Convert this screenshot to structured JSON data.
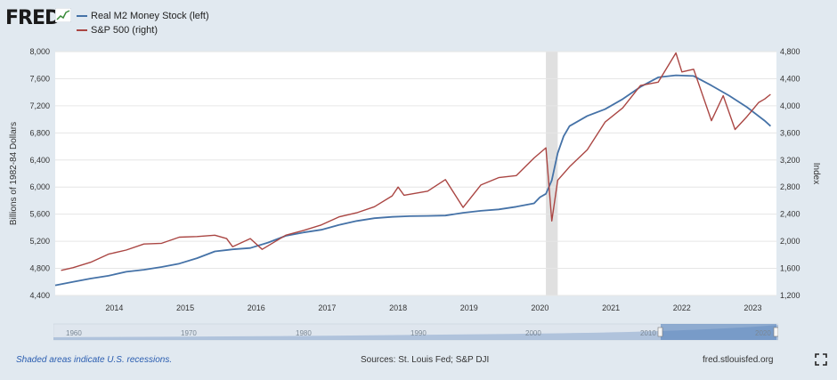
{
  "header": {
    "logo_text": "FRED"
  },
  "legend": [
    {
      "label": "Real M2 Money Stock (left)",
      "color": "#4572a7"
    },
    {
      "label": "S&P 500 (right)",
      "color": "#aa4643"
    }
  ],
  "chart_data": {
    "type": "line",
    "ylabel": "Billions of 1982-84 Dollars",
    "y2label": "Index",
    "ylim": [
      4400,
      8000
    ],
    "y2lim": [
      1200,
      4800
    ],
    "yticks": [
      "4,400",
      "4,800",
      "5,200",
      "5,600",
      "6,000",
      "6,400",
      "6,800",
      "7,200",
      "7,600",
      "8,000"
    ],
    "y2ticks": [
      "1,200",
      "1,600",
      "2,000",
      "2,400",
      "2,800",
      "3,200",
      "3,600",
      "4,000",
      "4,400",
      "4,800"
    ],
    "xlim": [
      "2013-03-01",
      "2023-05-01"
    ],
    "xticks": [
      "2014",
      "2015",
      "2016",
      "2017",
      "2018",
      "2019",
      "2020",
      "2021",
      "2022",
      "2023"
    ],
    "recession": {
      "start": "2020-02-01",
      "end": "2020-04-01"
    },
    "series": [
      {
        "name": "Real M2 Money Stock (left)",
        "axis": "left",
        "color": "#4572a7",
        "x": [
          "2013-03",
          "2013-06",
          "2013-09",
          "2013-12",
          "2014-03",
          "2014-06",
          "2014-09",
          "2014-12",
          "2015-03",
          "2015-06",
          "2015-09",
          "2015-12",
          "2016-03",
          "2016-06",
          "2016-09",
          "2016-12",
          "2017-03",
          "2017-06",
          "2017-09",
          "2017-12",
          "2018-03",
          "2018-06",
          "2018-09",
          "2018-12",
          "2019-03",
          "2019-06",
          "2019-09",
          "2019-12",
          "2020-01",
          "2020-02",
          "2020-03",
          "2020-04",
          "2020-05",
          "2020-06",
          "2020-09",
          "2020-12",
          "2021-03",
          "2021-06",
          "2021-09",
          "2021-12",
          "2022-03",
          "2022-06",
          "2022-09",
          "2022-12",
          "2023-03",
          "2023-04"
        ],
        "y": [
          4550,
          4600,
          4650,
          4690,
          4750,
          4780,
          4820,
          4870,
          4950,
          5050,
          5080,
          5100,
          5180,
          5280,
          5330,
          5370,
          5440,
          5500,
          5540,
          5560,
          5570,
          5575,
          5580,
          5620,
          5650,
          5670,
          5710,
          5760,
          5850,
          5900,
          6100,
          6500,
          6750,
          6900,
          7050,
          7150,
          7300,
          7480,
          7620,
          7650,
          7640,
          7500,
          7350,
          7180,
          6980,
          6900
        ]
      },
      {
        "name": "S&P 500 (right)",
        "axis": "right",
        "color": "#aa4643",
        "x": [
          "2013-04",
          "2013-06",
          "2013-09",
          "2013-12",
          "2014-03",
          "2014-06",
          "2014-09",
          "2014-12",
          "2015-03",
          "2015-06",
          "2015-08",
          "2015-09",
          "2015-12",
          "2016-02",
          "2016-06",
          "2016-09",
          "2016-12",
          "2017-03",
          "2017-06",
          "2017-09",
          "2017-12",
          "2018-01",
          "2018-02",
          "2018-06",
          "2018-09",
          "2018-12",
          "2019-03",
          "2019-06",
          "2019-09",
          "2019-12",
          "2020-02",
          "2020-03",
          "2020-04",
          "2020-06",
          "2020-09",
          "2020-12",
          "2021-03",
          "2021-06",
          "2021-09",
          "2021-12",
          "2022-01",
          "2022-03",
          "2022-06",
          "2022-08",
          "2022-10",
          "2022-12",
          "2023-02",
          "2023-03",
          "2023-04"
        ],
        "y": [
          1570,
          1610,
          1690,
          1810,
          1870,
          1960,
          1970,
          2060,
          2070,
          2090,
          2040,
          1920,
          2040,
          1880,
          2090,
          2160,
          2240,
          2360,
          2420,
          2510,
          2670,
          2800,
          2680,
          2740,
          2910,
          2500,
          2830,
          2940,
          2970,
          3230,
          3380,
          2300,
          2900,
          3100,
          3350,
          3760,
          3970,
          4300,
          4350,
          4780,
          4500,
          4540,
          3780,
          4150,
          3650,
          3840,
          4050,
          4100,
          4170
        ]
      }
    ]
  },
  "navigator": {
    "labels": [
      "1960",
      "1970",
      "1980",
      "1990",
      "2000",
      "2010",
      "2020"
    ]
  },
  "footer": {
    "note": "Shaded areas indicate U.S. recessions.",
    "sources": "Sources: St. Louis Fed; S&P DJI",
    "site": "fred.stlouisfed.org"
  }
}
